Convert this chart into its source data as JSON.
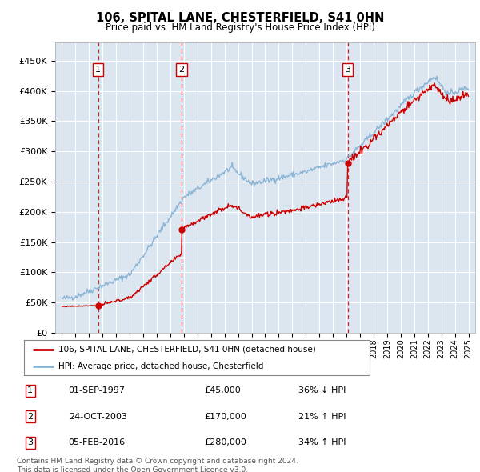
{
  "title": "106, SPITAL LANE, CHESTERFIELD, S41 0HN",
  "subtitle": "Price paid vs. HM Land Registry's House Price Index (HPI)",
  "purchase_info": [
    {
      "num": "1",
      "date": "01-SEP-1997",
      "price": "£45,000",
      "hpi": "36% ↓ HPI"
    },
    {
      "num": "2",
      "date": "24-OCT-2003",
      "price": "£170,000",
      "hpi": "21% ↑ HPI"
    },
    {
      "num": "3",
      "date": "05-FEB-2016",
      "price": "£280,000",
      "hpi": "34% ↑ HPI"
    }
  ],
  "legend_line1": "106, SPITAL LANE, CHESTERFIELD, S41 0HN (detached house)",
  "legend_line2": "HPI: Average price, detached house, Chesterfield",
  "footer1": "Contains HM Land Registry data © Crown copyright and database right 2024.",
  "footer2": "This data is licensed under the Open Government Licence v3.0.",
  "yticks": [
    0,
    50000,
    100000,
    150000,
    200000,
    250000,
    300000,
    350000,
    400000,
    450000
  ],
  "ytick_labels": [
    "£0",
    "£50K",
    "£100K",
    "£150K",
    "£200K",
    "£250K",
    "£300K",
    "£350K",
    "£400K",
    "£450K"
  ],
  "bg_color": "#dce6f1",
  "grid_color": "#ffffff",
  "hpi_line_color": "#8ab4d4",
  "price_line_color": "#cc0000",
  "dashed_color": "#cc0000",
  "purchase_times": [
    1997.667,
    2003.833,
    2016.083
  ],
  "purchase_prices": [
    45000,
    170000,
    280000
  ],
  "purchase_labels": [
    "1",
    "2",
    "3"
  ],
  "xmin": 1994.5,
  "xmax": 2025.5,
  "ymin": 0,
  "ymax": 480000
}
